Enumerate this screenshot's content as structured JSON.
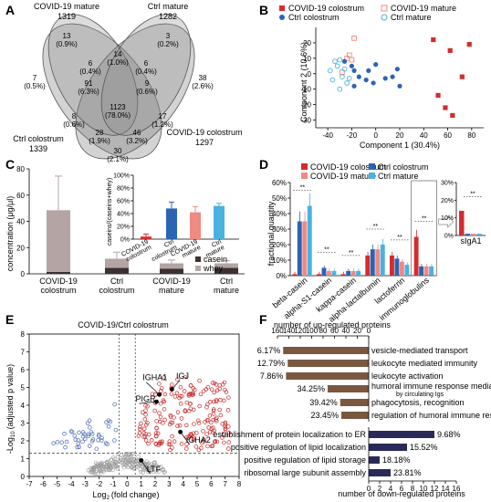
{
  "colors": {
    "covid_colostrum": "#d42c2c",
    "covid_mature": "#ef8a82",
    "ctrl_colostrum": "#2c64b4",
    "ctrl_mature": "#4ab2e0",
    "casein": "#3c3030",
    "whey": "#b4a4a4",
    "up_bar": "#7a5840",
    "down_bar": "#2a2a5a",
    "volcano_up": "#c82828",
    "volcano_down": "#4a6ab8",
    "volcano_ns": "#9a9a9a"
  },
  "panelA": {
    "letter": "A",
    "sets": [
      {
        "name": "COVID-19 mature",
        "count": "1319"
      },
      {
        "name": "Ctrl mature",
        "count": "1282"
      },
      {
        "name": "Ctrl colostrum",
        "count": "1339"
      },
      {
        "name": "COVID-19 colostrum",
        "count": "1297"
      }
    ],
    "regions": [
      {
        "n": "13",
        "p": "(0.9%)"
      },
      {
        "n": "3",
        "p": "(0.2%)"
      },
      {
        "n": "14",
        "p": "(1.0%)"
      },
      {
        "n": "6",
        "p": "(0.4%)"
      },
      {
        "n": "6",
        "p": "(0.4%)"
      },
      {
        "n": "7",
        "p": "(0.5%)"
      },
      {
        "n": "38",
        "p": "(2.6%)"
      },
      {
        "n": "91",
        "p": "(6.3%)"
      },
      {
        "n": "9",
        "p": "(0.6%)"
      },
      {
        "n": "1123",
        "p": "(78.0%)"
      },
      {
        "n": "8",
        "p": "(0.6%)"
      },
      {
        "n": "17",
        "p": "(1.2%)"
      },
      {
        "n": "28",
        "p": "(1.9%)"
      },
      {
        "n": "46",
        "p": "(3.2%)"
      },
      {
        "n": "30",
        "p": "(2.1%)"
      }
    ]
  },
  "chart_data": [
    {
      "panel": "B",
      "type": "scatter",
      "xlabel": "Component 1 (30.4%)",
      "ylabel": "Component 2 (10.6%)",
      "xlim": [
        -50,
        90
      ],
      "ylim": [
        -35,
        30
      ],
      "xticks": [
        "-40",
        "-20",
        "0",
        "20",
        "40",
        "60",
        "80"
      ],
      "yticks": [
        "-30",
        "-20",
        "-10",
        "0",
        "10",
        "20"
      ],
      "legend": [
        "COVID-19 colostrum",
        "COVID-19 mature",
        "Ctrl colostrum",
        "Ctrl mature"
      ],
      "series": [
        {
          "name": "COVID-19 colostrum",
          "points": [
            [
              48,
              22
            ],
            [
              62,
              15
            ],
            [
              78,
              19
            ],
            [
              72,
              -2
            ],
            [
              52,
              -14
            ],
            [
              58,
              -22
            ],
            [
              64,
              -27
            ]
          ]
        },
        {
          "name": "COVID-19 mature",
          "points": [
            [
              -18,
              23
            ],
            [
              -24,
              10
            ],
            [
              -22,
              12
            ],
            [
              -28,
              1
            ],
            [
              -20,
              9
            ]
          ]
        },
        {
          "name": "Ctrl colostrum",
          "points": [
            [
              -26,
              8
            ],
            [
              -20,
              5
            ],
            [
              -18,
              2
            ],
            [
              -14,
              -2
            ],
            [
              -18,
              -8
            ],
            [
              -8,
              -4
            ],
            [
              0,
              6
            ],
            [
              8,
              -3
            ],
            [
              14,
              -2
            ],
            [
              18,
              3
            ],
            [
              20,
              -8
            ],
            [
              -6,
              2
            ],
            [
              -2,
              -6
            ]
          ]
        },
        {
          "name": "Ctrl mature",
          "points": [
            [
              -38,
              2
            ],
            [
              -36,
              -4
            ],
            [
              -34,
              8
            ],
            [
              -30,
              -10
            ],
            [
              -32,
              5
            ],
            [
              -28,
              -2
            ],
            [
              -24,
              -6
            ],
            [
              -26,
              3
            ],
            [
              -22,
              -3
            ],
            [
              -30,
              9
            ]
          ]
        }
      ]
    },
    {
      "panel": "C",
      "type": "bar",
      "ylabel": "concentration (μg/μl)",
      "ylim": [
        0,
        80
      ],
      "yticks": [
        "0",
        "20",
        "40",
        "60",
        "80"
      ],
      "categories": [
        "COVID-19 colostrum",
        "Ctrl colostrum",
        "COVID-19 mature",
        "Ctrl mature"
      ],
      "series": [
        {
          "name": "casein",
          "values": [
            1.5,
            4.5,
            4,
            4.5
          ]
        },
        {
          "name": "whey",
          "values": [
            47,
            7,
            4,
            3.5
          ]
        }
      ],
      "errors": [
        26,
        5,
        2.5,
        2
      ],
      "inset": {
        "ylabel": "caseins/(caseins+whey)",
        "ylim": [
          0,
          100
        ],
        "yticks": [
          "0",
          "20",
          "40",
          "60",
          "80",
          "100"
        ],
        "yunit": "%",
        "categories": [
          "COVID-19 colostrum",
          "Ctrl colostrum",
          "COVID-19 mature",
          "Ctrl mature"
        ],
        "values": [
          4,
          48,
          42,
          52
        ],
        "errors": [
          4,
          10,
          9,
          4
        ]
      }
    },
    {
      "panel": "D",
      "type": "bar",
      "ylabel": "fractional quantity",
      "ylim": [
        0,
        60
      ],
      "yticks": [
        "0",
        "10",
        "20",
        "30",
        "40",
        "50",
        "60"
      ],
      "yunit": "%",
      "categories": [
        "beta-casein",
        "alpha-S1-casein",
        "kappa-casein",
        "alpha-lactalbumin",
        "lactoferrin",
        "immunoglobulins"
      ],
      "legend": [
        "COVID-19 colostrum",
        "Ctrl colostrum",
        "COVID-19 mature",
        "Ctrl mature"
      ],
      "series": [
        {
          "name": "COVID-19 colostrum",
          "values": [
            1,
            1,
            1,
            13,
            13,
            25
          ]
        },
        {
          "name": "Ctrl colostrum",
          "values": [
            35,
            5,
            3,
            17,
            11,
            6
          ]
        },
        {
          "name": "COVID-19 mature",
          "values": [
            35,
            3,
            3,
            17,
            9,
            6
          ]
        },
        {
          "name": "Ctrl mature",
          "values": [
            45,
            3,
            3,
            20,
            7,
            6
          ]
        }
      ],
      "inset": {
        "category": "sIgA1",
        "ylim": [
          0,
          30
        ],
        "yticks": [
          "0%",
          "10%",
          "20%",
          "30%"
        ],
        "values": [
          14,
          1,
          1,
          1
        ]
      }
    },
    {
      "panel": "E",
      "type": "scatter",
      "title": "COVID-19/Ctrl colostrum",
      "xlabel": "Log",
      "xlabel_sub": "2",
      "xlabel_rest": "(fold change)",
      "ylabel": "-Log",
      "ylabel_sub": "10",
      "ylabel_rest": "(adjusted p value)",
      "xlim": [
        -7,
        8
      ],
      "ylim": [
        0,
        8
      ],
      "xticks": [
        "-7",
        "-6",
        "-5",
        "-4",
        "-3",
        "-2",
        "-1",
        "0",
        "1",
        "2",
        "3",
        "4",
        "5",
        "6",
        "7",
        "8"
      ],
      "yticks": [
        "0",
        "1",
        "2",
        "3",
        "4",
        "5",
        "6",
        "7",
        "8"
      ],
      "annotations": [
        "IGHA1",
        "IGJ",
        "PIGR",
        "IGHA2",
        "LTF"
      ]
    },
    {
      "panel": "F",
      "type": "bar",
      "top_axis_label": "number of up-regulated proteins",
      "bottom_axis_label": "number of down-regulated proteins",
      "top_ticks": [
        "160",
        "140",
        "120",
        "100",
        "80",
        "60",
        "40",
        "20",
        "0"
      ],
      "bottom_ticks": [
        "0",
        "2",
        "4",
        "6",
        "8",
        "10",
        "12",
        "14",
        "16"
      ],
      "up": [
        {
          "term": "vesicle-mediated transport",
          "pct": "6.17%",
          "value": 150
        },
        {
          "term": "leukocyte mediated immunity",
          "pct": "12.79%",
          "value": 142
        },
        {
          "term": "leukocyte activation",
          "pct": "7.86%",
          "value": 145
        },
        {
          "term": "humoral immune response mediated",
          "term2": "by circulating Igs",
          "pct": "34.25%",
          "value": 72
        },
        {
          "term": "phagocytosis, recognition",
          "pct": "39.42%",
          "value": 50
        },
        {
          "term": "regulation of humoral immune response",
          "pct": "23.45%",
          "value": 48
        }
      ],
      "down": [
        {
          "term": "establishment of protein localization to ER",
          "pct": "9.68%",
          "value": 12
        },
        {
          "term": "positive regulation of lipid localization",
          "pct": "15.52%",
          "value": 7
        },
        {
          "term": "positive regulation of lipid storage",
          "pct": "18.18%",
          "value": 2
        },
        {
          "term": "ribosomal large subunit assembly",
          "pct": "23.81%",
          "value": 4
        }
      ]
    }
  ],
  "letters": {
    "B": "B",
    "C": "C",
    "D": "D",
    "E": "E",
    "F": "F"
  }
}
